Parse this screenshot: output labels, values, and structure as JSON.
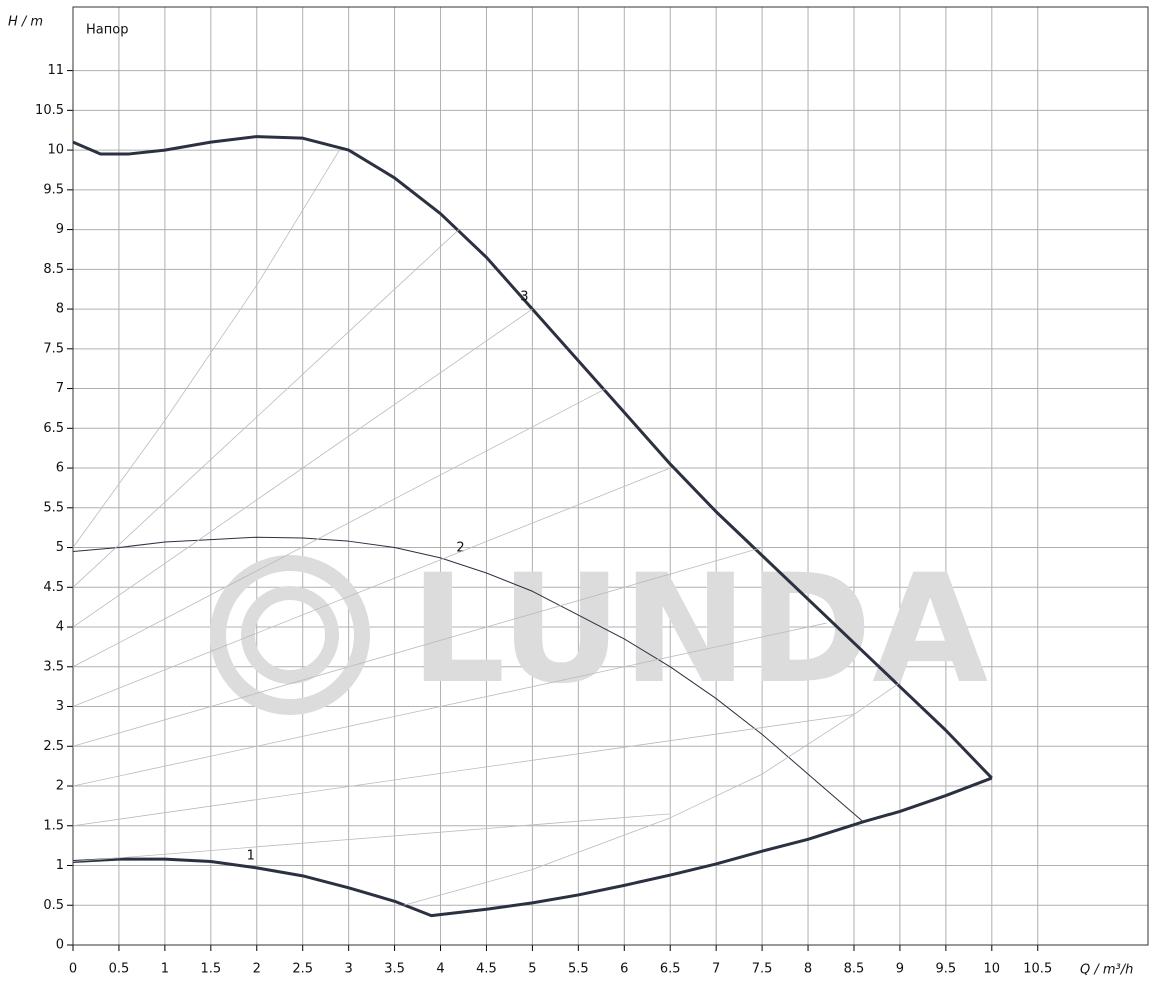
{
  "chart_data": {
    "type": "line",
    "title": "Напор",
    "y_label": "H / m",
    "x_label": "Q / m³/h",
    "watermark": "LUNDA",
    "xlim": [
      0,
      11.7
    ],
    "ylim": [
      0,
      11.8
    ],
    "xticks": [
      0,
      0.5,
      1,
      1.5,
      2,
      2.5,
      3,
      3.5,
      4,
      4.5,
      5,
      5.5,
      6,
      6.5,
      7,
      7.5,
      8,
      8.5,
      9,
      9.5,
      10,
      10.5
    ],
    "yticks": [
      0,
      0.5,
      1,
      1.5,
      2,
      2.5,
      3,
      3.5,
      4,
      4.5,
      5,
      5.5,
      6,
      6.5,
      7,
      7.5,
      8,
      8.5,
      9,
      9.5,
      10,
      10.5,
      11
    ],
    "grid": true,
    "series": [
      {
        "name": "3",
        "color": "#2b3140",
        "width": 3,
        "x": [
          0,
          0.3,
          0.6,
          1,
          1.5,
          2,
          2.5,
          3,
          3.5,
          4,
          4.5,
          5,
          5.5,
          6,
          6.5,
          7,
          7.5,
          8,
          8.5,
          9,
          9.5,
          10
        ],
        "values": [
          10.1,
          9.95,
          9.95,
          10.0,
          10.1,
          10.17,
          10.15,
          10.0,
          9.65,
          9.2,
          8.65,
          8.0,
          7.35,
          6.7,
          6.05,
          5.45,
          4.9,
          4.35,
          3.8,
          3.25,
          2.7,
          2.1
        ]
      },
      {
        "name": "2",
        "color": "#2b3140",
        "width": 1,
        "x": [
          0,
          0.5,
          1,
          1.5,
          2,
          2.5,
          3,
          3.5,
          4,
          4.5,
          5,
          5.5,
          6,
          6.5,
          7,
          7.5,
          8,
          8.6
        ],
        "values": [
          4.95,
          5.0,
          5.07,
          5.1,
          5.13,
          5.12,
          5.08,
          5.0,
          4.87,
          4.68,
          4.45,
          4.15,
          3.85,
          3.5,
          3.1,
          2.65,
          2.15,
          1.55
        ]
      },
      {
        "name": "1",
        "color": "#2b3140",
        "width": 3,
        "x": [
          0,
          0.5,
          1,
          1.5,
          2,
          2.5,
          3,
          3.5,
          3.9,
          4.5,
          5,
          5.5,
          6,
          6.5,
          7,
          7.5,
          8,
          8.6,
          9,
          9.5,
          10
        ],
        "values": [
          1.05,
          1.08,
          1.08,
          1.05,
          0.97,
          0.87,
          0.72,
          0.55,
          0.37,
          0.45,
          0.53,
          0.63,
          0.75,
          0.88,
          1.02,
          1.18,
          1.33,
          1.55,
          1.68,
          1.88,
          2.1
        ]
      },
      {
        "color": "#bbbbbb",
        "width": 0.8,
        "x": [
          0,
          1,
          2,
          2.9
        ],
        "values": [
          5,
          6.6,
          8.3,
          10
        ]
      },
      {
        "color": "#bbbbbb",
        "width": 0.8,
        "x": [
          0,
          4.2
        ],
        "values": [
          4.5,
          9.0
        ]
      },
      {
        "color": "#bbbbbb",
        "width": 0.8,
        "x": [
          0,
          5
        ],
        "values": [
          4,
          8
        ]
      },
      {
        "color": "#bbbbbb",
        "width": 0.8,
        "x": [
          0,
          5.8
        ],
        "values": [
          3.5,
          7
        ]
      },
      {
        "color": "#bbbbbb",
        "width": 0.8,
        "x": [
          0,
          6.5
        ],
        "values": [
          3,
          6
        ]
      },
      {
        "color": "#bbbbbb",
        "width": 0.8,
        "x": [
          0,
          7.5
        ],
        "values": [
          2.5,
          5
        ]
      },
      {
        "color": "#bbbbbb",
        "width": 0.8,
        "x": [
          0,
          8.2
        ],
        "values": [
          2,
          4.05
        ]
      },
      {
        "color": "#bbbbbb",
        "width": 0.8,
        "x": [
          0,
          8.5
        ],
        "values": [
          1.5,
          2.9
        ]
      },
      {
        "color": "#bbbbbb",
        "width": 0.8,
        "x": [
          0,
          6.5
        ],
        "values": [
          1.05,
          1.65
        ]
      },
      {
        "color": "#bbbbbb",
        "width": 0.8,
        "x": [
          3.6,
          5,
          6.5,
          7.5,
          8.5,
          9
        ],
        "values": [
          0.5,
          0.95,
          1.6,
          2.15,
          2.9,
          3.3
        ]
      }
    ]
  }
}
